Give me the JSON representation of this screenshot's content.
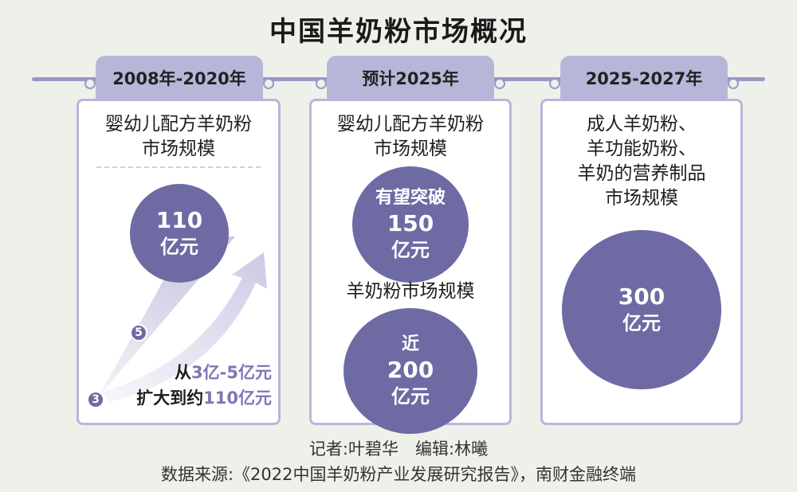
{
  "title": "中国羊奶粉市场概况",
  "colors": {
    "accent": "#6e6aa3",
    "tab": "#b8b6d8",
    "highlight": "#7b77b5",
    "background": "#eef1ea"
  },
  "panels": [
    {
      "tab": "2008年-2020年",
      "subtitle_lines": [
        "婴幼儿配方羊奶粉",
        "市场规模"
      ],
      "circle": {
        "value": "110",
        "unit": "亿元"
      },
      "growth": {
        "start_marker": "3",
        "end_marker": "5",
        "line1_prefix": "从",
        "line1_highlight": "3亿-5亿元",
        "line2_prefix": "扩大到约",
        "line2_highlight": "110亿元"
      }
    },
    {
      "tab": "预计2025年",
      "subtitle_lines": [
        "婴幼儿配方羊奶粉",
        "市场规模"
      ],
      "circle1": {
        "prefix": "有望突破",
        "value": "150",
        "unit": "亿元"
      },
      "label2": "羊奶粉市场规模",
      "circle2": {
        "prefix": "近",
        "value": "200",
        "unit": "亿元"
      }
    },
    {
      "tab": "2025-2027年",
      "subtitle_lines": [
        "成人羊奶粉、",
        "羊功能奶粉、",
        "羊奶的营养制品",
        "市场规模"
      ],
      "circle": {
        "value": "300",
        "unit": "亿元"
      }
    }
  ],
  "footer": {
    "credits": "记者:叶碧华　编辑:林曦",
    "source": "数据来源:《2022中国羊奶粉产业发展研究报告》，南财金融终端"
  }
}
